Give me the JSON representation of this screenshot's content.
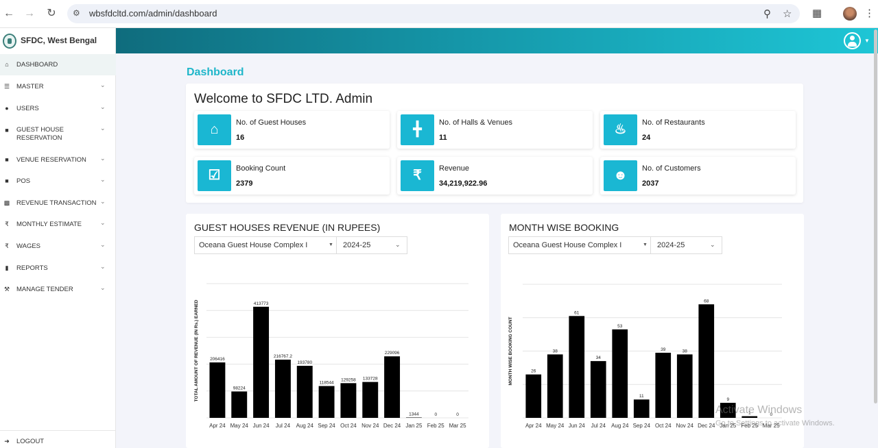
{
  "browser": {
    "url": "wbsfdcltd.com/admin/dashboard"
  },
  "sidebar": {
    "brand": "SFDC, West Bengal",
    "items": [
      {
        "label": "DASHBOARD",
        "icon": "home-icon",
        "active": true
      },
      {
        "label": "MASTER",
        "icon": "bars-icon"
      },
      {
        "label": "USERS",
        "icon": "users-icon"
      },
      {
        "label": "GUEST HOUSE RESERVATION",
        "icon": "lock-icon"
      },
      {
        "label": "VENUE RESERVATION",
        "icon": "lock-icon"
      },
      {
        "label": "POS",
        "icon": "lock-icon"
      },
      {
        "label": "REVENUE TRANSACTION",
        "icon": "money-icon"
      },
      {
        "label": "MONTHLY ESTIMATE",
        "icon": "rupee-icon"
      },
      {
        "label": "WAGES",
        "icon": "rupee-icon"
      },
      {
        "label": "REPORTS",
        "icon": "file-icon"
      },
      {
        "label": "MANAGE TENDER",
        "icon": "gavel-icon"
      }
    ],
    "logout": "LOGOUT"
  },
  "main": {
    "title": "Dashboard",
    "welcome": "Welcome to SFDC LTD. Admin",
    "stats": [
      {
        "label": "No. of Guest Houses",
        "value": "16",
        "icon": "home-icon"
      },
      {
        "label": "No. of Halls & Venues",
        "value": "11",
        "icon": "signpost-icon"
      },
      {
        "label": "No. of Restaurants",
        "value": "24",
        "icon": "utensils-icon"
      },
      {
        "label": "Booking Count",
        "value": "2379",
        "icon": "calendar-check-icon"
      },
      {
        "label": "Revenue",
        "value": "34,219,922.96",
        "icon": "rupee-icon"
      },
      {
        "label": "No. of Customers",
        "value": "2037",
        "icon": "users-icon"
      }
    ]
  },
  "revenue_panel": {
    "title": "GUEST HOUSES REVENUE (IN RUPEES)",
    "guest_house": "Oceana Guest House Complex I",
    "year": "2024-25"
  },
  "booking_panel": {
    "title": "MONTH WISE BOOKING",
    "guest_house": "Oceana Guest House Complex I",
    "year": "2024-25"
  },
  "watermark": {
    "line1": "Activate Windows",
    "line2": "Go to Settings to activate Windows."
  },
  "colors": {
    "accent": "#1fb6c9",
    "stat_icon_bg": "#1ab7d3",
    "bar": "#000000",
    "topbar_start": "#0f6c7d",
    "topbar_end": "#1ec6d6"
  },
  "chart_data": [
    {
      "type": "bar",
      "title": "",
      "xlabel": "",
      "ylabel": "TOTAL AMOUNT OF REVENUE (IN Rs.) EARNED",
      "categories": [
        "Apr 24",
        "May 24",
        "Jun 24",
        "Jul 24",
        "Aug 24",
        "Sep 24",
        "Oct 24",
        "Nov 24",
        "Dec 24",
        "Jan 25",
        "Feb 25",
        "Mar 25"
      ],
      "values": [
        206416,
        98224,
        413773,
        216767.2,
        193780,
        118544,
        129258,
        133728,
        229096,
        1344,
        0,
        0
      ],
      "labels": [
        "206416",
        "98224",
        "413773",
        "216767.2",
        "193780",
        "118544",
        "129258",
        "133728",
        "229096",
        "1344",
        "0",
        "0"
      ],
      "ylim": [
        0,
        500000
      ],
      "grid": true
    },
    {
      "type": "bar",
      "title": "",
      "xlabel": "",
      "ylabel": "MONTH WISE BOOKING COUNT",
      "categories": [
        "Apr 24",
        "May 24",
        "Jun 24",
        "Jul 24",
        "Aug 24",
        "Sep 24",
        "Oct 24",
        "Nov 24",
        "Dec 24",
        "Jan 25",
        "Feb 25",
        "Mar 25"
      ],
      "values": [
        26,
        38,
        61,
        34,
        53,
        11,
        39,
        38,
        68,
        9,
        1,
        0
      ],
      "labels": [
        "26",
        "38",
        "61",
        "34",
        "53",
        "11",
        "39",
        "38",
        "68",
        "9",
        "1",
        "0"
      ],
      "ylim": [
        0,
        80
      ],
      "grid": true
    }
  ]
}
